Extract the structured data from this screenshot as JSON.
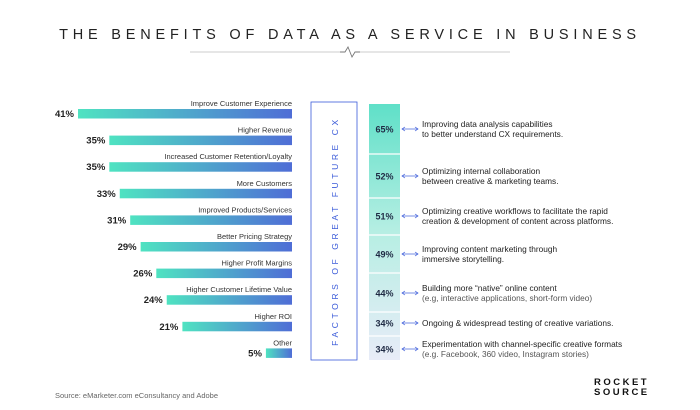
{
  "title": "THE BENEFITS OF DATA AS A SERVICE IN BUSINESS",
  "source": "Source: eMarketer.com eConsultancy and Adobe",
  "logo": {
    "line1": "ROCKET",
    "line2": "SOURCE"
  },
  "vertical_label": "FACTORS OF GREAT FUTURE CX",
  "colors": {
    "bar_start": "#4fe3c1",
    "bar_end": "#4f6dd6",
    "band_top": "#5fe0c8",
    "band_bottom": "#e8ecf8",
    "accent": "#3b5bd9"
  },
  "chart_data": [
    {
      "type": "bar",
      "orientation": "horizontal",
      "direction": "right-to-left",
      "categories": [
        "Improve Customer Experience",
        "Higher Revenue",
        "Increased Customer Retention/Loyalty",
        "More Customers",
        "Improved Products/Services",
        "Better Pricing Strategy",
        "Higher Profit Margins",
        "Higher Customer Lifetime Value",
        "Higher ROI",
        "Other"
      ],
      "values": [
        41,
        35,
        35,
        33,
        31,
        29,
        26,
        24,
        21,
        5
      ],
      "value_labels": [
        "41%",
        "35%",
        "35%",
        "33%",
        "31%",
        "29%",
        "26%",
        "24%",
        "21%",
        "5%"
      ]
    },
    {
      "type": "table",
      "title": "FACTORS OF GREAT FUTURE CX",
      "values": [
        65,
        52,
        51,
        49,
        44,
        34,
        34
      ],
      "value_labels": [
        "65%",
        "52%",
        "51%",
        "49%",
        "44%",
        "34%",
        "34%"
      ],
      "factors": [
        {
          "line1": "Improving data analysis capabilities",
          "line2": "to better understand CX requirements.",
          "sub": ""
        },
        {
          "line1": "Optimizing internal collaboration",
          "line2": "between creative & marketing teams.",
          "sub": ""
        },
        {
          "line1": "Optimizing creative workflows to facilitate the rapid",
          "line2": "creation & development of content across platforms.",
          "sub": ""
        },
        {
          "line1": "Improving content marketing through",
          "line2": "immersive storytelling.",
          "sub": ""
        },
        {
          "line1": "Building more “native” online content",
          "line2": "",
          "sub": "(e.g, interactive applications, short-form video)"
        },
        {
          "line1": "Ongoing & widespread testing of creative variations.",
          "line2": "",
          "sub": ""
        },
        {
          "line1": "Experimentation with channel-specific creative formats",
          "line2": "",
          "sub": "(e.g. Facebook, 360 video, Instagram stories)"
        }
      ]
    }
  ]
}
